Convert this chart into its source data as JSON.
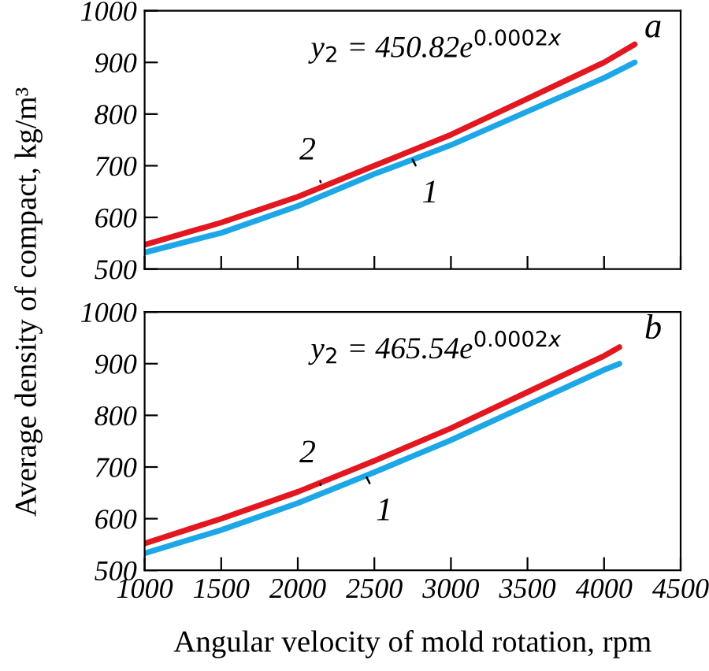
{
  "chart_data": [
    {
      "type": "line",
      "ylabel": "Average density of compact, kg/m³",
      "xlim": [
        1000,
        4500
      ],
      "ylim": [
        500,
        1000
      ],
      "xticks": [
        1000,
        1500,
        2000,
        2500,
        3000,
        3500,
        4000,
        4500
      ],
      "yticks": [
        500,
        600,
        700,
        800,
        900,
        1000
      ],
      "tick_labels": "y",
      "grid": false,
      "legend": false,
      "x": [
        1000,
        1500,
        2000,
        2500,
        3000,
        3500,
        4000,
        4200
      ],
      "series": [
        {
          "color": "#1ea7e6",
          "values": [
            532,
            570,
            622,
            684,
            740,
            805,
            870,
            900
          ]
        },
        {
          "color": "#e3171f",
          "values": [
            547,
            590,
            640,
            700,
            760,
            830,
            900,
            935
          ]
        }
      ],
      "annotations": [
        {
          "text": "2",
          "x": 2150,
          "y": 668
        },
        {
          "text": "1",
          "x": 2750,
          "y": 712
        },
        "y$_{2}$ = 450.82e$^{0.0002x}$",
        "a"
      ]
    },
    {
      "type": "line",
      "xlabel": "Angular velocity of mold rotation, rpm",
      "xlim": [
        1000,
        4500
      ],
      "ylim": [
        500,
        1000
      ],
      "xticks": [
        1000,
        1500,
        2000,
        2500,
        3000,
        3500,
        4000,
        4500
      ],
      "yticks": [
        500,
        600,
        700,
        800,
        900,
        1000
      ],
      "grid": false,
      "legend": false,
      "x": [
        1000,
        1500,
        2000,
        2500,
        3000,
        3500,
        4000,
        4100
      ],
      "series": [
        {
          "color": "#1ea7e6",
          "values": [
            533,
            578,
            630,
            690,
            752,
            820,
            888,
            900
          ]
        },
        {
          "color": "#e3171f",
          "values": [
            552,
            600,
            652,
            712,
            775,
            845,
            915,
            932
          ]
        }
      ],
      "annotations": [
        {
          "text": "2",
          "x": 2150,
          "y": 665
        },
        {
          "text": "1",
          "x": 2450,
          "y": 680
        },
        "y$_{2}$ = 465.54e$^{0.0002x}$",
        "b"
      ]
    }
  ]
}
